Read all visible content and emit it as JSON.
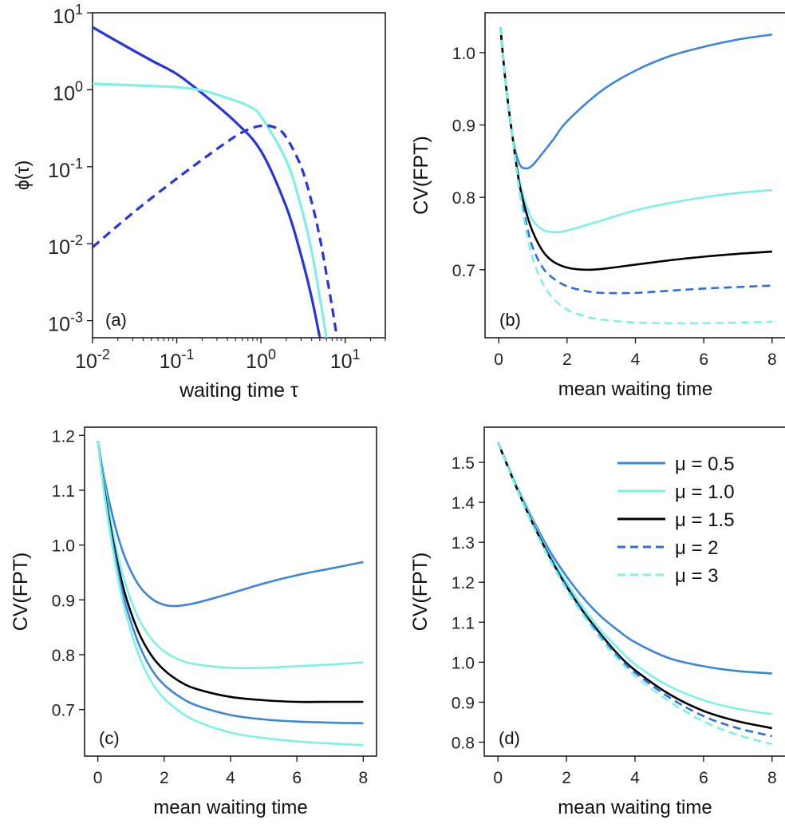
{
  "figure": {
    "title": "",
    "legend_location": "panel (d), top-right",
    "legend": [
      {
        "label": "μ = 0.5",
        "color": "#3a86dd",
        "dash": "solid"
      },
      {
        "label": "μ = 1.0",
        "color": "#7ef1e6",
        "dash": "solid"
      },
      {
        "label": "μ = 1.5",
        "color": "#000000",
        "dash": "solid"
      },
      {
        "label": "μ = 2",
        "color": "#2e6fe0",
        "dash": "dashed"
      },
      {
        "label": "μ = 3",
        "color": "#7ef1e6",
        "dash": "dashed"
      }
    ]
  },
  "chart_data": [
    {
      "id": "a",
      "type": "line",
      "panel_label": "(a)",
      "xlabel": "waiting time τ",
      "ylabel": "ϕ(τ)",
      "xscale": "log",
      "yscale": "log",
      "xlim": [
        0.01,
        30
      ],
      "ylim": [
        0.0006,
        10
      ],
      "xticks": [
        {
          "value": 0.01,
          "base": "10",
          "exp": "-2"
        },
        {
          "value": 0.1,
          "base": "10",
          "exp": "-1"
        },
        {
          "value": 1,
          "base": "10",
          "exp": "0"
        },
        {
          "value": 10,
          "base": "10",
          "exp": "1"
        }
      ],
      "yticks": [
        {
          "value": 0.001,
          "base": "10",
          "exp": "-3"
        },
        {
          "value": 0.01,
          "base": "10",
          "exp": "-2"
        },
        {
          "value": 0.1,
          "base": "10",
          "exp": "-1"
        },
        {
          "value": 1,
          "base": "10",
          "exp": "0"
        },
        {
          "value": 10,
          "base": "10",
          "exp": "1"
        }
      ],
      "series": [
        {
          "name": "dark blue solid",
          "color": "#2536e0",
          "dash": "solid",
          "x": [
            0.01,
            0.02,
            0.05,
            0.1,
            0.2,
            0.5,
            1,
            2,
            3,
            4,
            5
          ],
          "y": [
            6.5,
            4.2,
            2.4,
            1.6,
            0.9,
            0.38,
            0.16,
            0.03,
            0.007,
            0.002,
            0.0006
          ]
        },
        {
          "name": "cyan solid",
          "color": "#7ef1e6",
          "dash": "solid",
          "x": [
            0.01,
            0.05,
            0.1,
            0.2,
            0.4,
            0.7,
            1,
            2,
            3,
            4,
            5,
            6
          ],
          "y": [
            1.2,
            1.12,
            1.08,
            0.98,
            0.78,
            0.62,
            0.45,
            0.12,
            0.03,
            0.008,
            0.002,
            0.0006
          ]
        },
        {
          "name": "blue dashed",
          "color": "#2536e0",
          "dash": "dashed",
          "x": [
            0.01,
            0.03,
            0.1,
            0.3,
            0.6,
            1,
            1.5,
            2,
            3,
            4,
            5,
            6,
            7,
            8
          ],
          "y": [
            0.009,
            0.025,
            0.07,
            0.17,
            0.28,
            0.34,
            0.32,
            0.24,
            0.1,
            0.035,
            0.012,
            0.004,
            0.0015,
            0.0006
          ]
        }
      ]
    },
    {
      "id": "b",
      "type": "line",
      "panel_label": "(b)",
      "xlabel": "mean waiting time",
      "ylabel": "CV(FPT)",
      "xlim": [
        -0.4,
        8.4
      ],
      "ylim": [
        0.606,
        1.055
      ],
      "xticks": [
        0,
        2,
        4,
        6,
        8
      ],
      "yticks": [
        0.7,
        0.8,
        0.9,
        1.0
      ],
      "series": [
        {
          "name": "μ = 0.5",
          "color": "#3a86dd",
          "dash": "solid",
          "x": [
            0.05,
            0.2,
            0.4,
            0.6,
            0.8,
            1.0,
            1.3,
            1.6,
            2,
            3,
            4,
            5,
            6,
            7,
            8
          ],
          "y": [
            1.035,
            0.96,
            0.885,
            0.847,
            0.84,
            0.845,
            0.862,
            0.88,
            0.905,
            0.947,
            0.975,
            0.995,
            1.008,
            1.018,
            1.025
          ]
        },
        {
          "name": "μ = 1.0",
          "color": "#7ef1e6",
          "dash": "solid",
          "x": [
            0.05,
            0.2,
            0.4,
            0.6,
            0.8,
            1.0,
            1.3,
            1.6,
            2,
            3,
            4,
            5,
            6,
            7,
            8
          ],
          "y": [
            1.035,
            0.96,
            0.885,
            0.825,
            0.79,
            0.768,
            0.755,
            0.752,
            0.754,
            0.768,
            0.782,
            0.792,
            0.8,
            0.806,
            0.81
          ]
        },
        {
          "name": "μ = 1.5",
          "color": "#000000",
          "dash": "solid",
          "x": [
            0.05,
            0.2,
            0.4,
            0.6,
            0.8,
            1.0,
            1.3,
            1.6,
            2,
            2.5,
            3,
            4,
            5,
            6,
            7,
            8
          ],
          "y": [
            1.035,
            0.96,
            0.885,
            0.82,
            0.78,
            0.752,
            0.725,
            0.711,
            0.703,
            0.7,
            0.701,
            0.707,
            0.713,
            0.718,
            0.722,
            0.725
          ]
        },
        {
          "name": "μ = 2",
          "color": "#2e6fe0",
          "dash": "dashed",
          "x": [
            0.05,
            0.2,
            0.4,
            0.6,
            0.8,
            1.0,
            1.3,
            1.6,
            2,
            2.5,
            3,
            4,
            5,
            6,
            7,
            8
          ],
          "y": [
            1.035,
            0.96,
            0.885,
            0.815,
            0.765,
            0.73,
            0.702,
            0.688,
            0.677,
            0.671,
            0.668,
            0.668,
            0.671,
            0.674,
            0.676,
            0.678
          ]
        },
        {
          "name": "μ = 3",
          "color": "#7ef1e6",
          "dash": "dashed",
          "x": [
            0.05,
            0.2,
            0.4,
            0.6,
            0.8,
            1.0,
            1.3,
            1.6,
            2,
            2.5,
            3,
            4,
            5,
            6,
            7,
            8
          ],
          "y": [
            1.035,
            0.96,
            0.885,
            0.81,
            0.755,
            0.715,
            0.68,
            0.66,
            0.645,
            0.636,
            0.631,
            0.627,
            0.626,
            0.626,
            0.627,
            0.628
          ]
        }
      ]
    },
    {
      "id": "c",
      "type": "line",
      "panel_label": "(c)",
      "xlabel": "mean waiting time",
      "ylabel": "CV(FPT)",
      "xlim": [
        -0.4,
        8.4
      ],
      "ylim": [
        0.615,
        1.215
      ],
      "xticks": [
        0,
        2,
        4,
        6,
        8
      ],
      "yticks": [
        0.7,
        0.8,
        0.9,
        1.0,
        1.1,
        1.2
      ],
      "series": [
        {
          "name": "μ = 0.5",
          "color": "#3a86dd",
          "dash": "solid",
          "x": [
            0.0,
            0.2,
            0.5,
            0.8,
            1.2,
            1.6,
            2.0,
            2.4,
            3,
            4,
            5,
            6,
            7,
            8
          ],
          "y": [
            1.19,
            1.12,
            1.04,
            0.98,
            0.93,
            0.903,
            0.891,
            0.889,
            0.895,
            0.912,
            0.93,
            0.945,
            0.957,
            0.969
          ]
        },
        {
          "name": "μ = 1.0",
          "color": "#7ef1e6",
          "dash": "solid",
          "x": [
            0.0,
            0.2,
            0.5,
            0.8,
            1.2,
            1.6,
            2.0,
            2.5,
            3,
            4,
            5,
            6,
            7,
            8
          ],
          "y": [
            1.19,
            1.11,
            1.01,
            0.935,
            0.87,
            0.83,
            0.806,
            0.79,
            0.782,
            0.776,
            0.776,
            0.779,
            0.782,
            0.786
          ]
        },
        {
          "name": "μ = 1.5",
          "color": "#000000",
          "dash": "solid",
          "x": [
            0.0,
            0.2,
            0.5,
            0.8,
            1.2,
            1.6,
            2.0,
            2.5,
            3,
            4,
            5,
            6,
            7,
            8
          ],
          "y": [
            1.19,
            1.1,
            0.995,
            0.915,
            0.845,
            0.8,
            0.772,
            0.75,
            0.737,
            0.723,
            0.717,
            0.714,
            0.714,
            0.714
          ]
        },
        {
          "name": "μ = 2",
          "color": "#3a86dd",
          "dash": "solid",
          "x": [
            0.0,
            0.2,
            0.5,
            0.8,
            1.2,
            1.6,
            2.0,
            2.5,
            3,
            4,
            5,
            6,
            7,
            8
          ],
          "y": [
            1.19,
            1.095,
            0.985,
            0.9,
            0.825,
            0.775,
            0.745,
            0.722,
            0.707,
            0.69,
            0.682,
            0.678,
            0.676,
            0.675
          ]
        },
        {
          "name": "μ = 3",
          "color": "#7ef1e6",
          "dash": "solid",
          "x": [
            0.0,
            0.2,
            0.5,
            0.8,
            1.2,
            1.6,
            2.0,
            2.5,
            3,
            4,
            5,
            6,
            7,
            8
          ],
          "y": [
            1.19,
            1.09,
            0.975,
            0.885,
            0.805,
            0.752,
            0.72,
            0.695,
            0.678,
            0.658,
            0.648,
            0.642,
            0.638,
            0.635
          ]
        }
      ]
    },
    {
      "id": "d",
      "type": "line",
      "panel_label": "(d)",
      "xlabel": "mean waiting time",
      "ylabel": "CV(FPT)",
      "xlim": [
        -0.4,
        8.4
      ],
      "ylim": [
        0.765,
        1.588
      ],
      "xticks": [
        0,
        2,
        4,
        6,
        8
      ],
      "yticks": [
        0.8,
        0.9,
        1.0,
        1.1,
        1.2,
        1.3,
        1.4,
        1.5
      ],
      "series": [
        {
          "name": "μ = 0.5",
          "color": "#3a86dd",
          "dash": "solid",
          "x": [
            0,
            0.5,
            1,
            1.5,
            2,
            2.5,
            3,
            3.5,
            4,
            5,
            6,
            7,
            8
          ],
          "y": [
            1.55,
            1.45,
            1.36,
            1.28,
            1.215,
            1.16,
            1.115,
            1.08,
            1.05,
            1.01,
            0.99,
            0.978,
            0.972
          ]
        },
        {
          "name": "μ = 1.0",
          "color": "#7ef1e6",
          "dash": "solid",
          "x": [
            0,
            0.5,
            1,
            1.5,
            2,
            2.5,
            3,
            3.5,
            4,
            5,
            6,
            7,
            8
          ],
          "y": [
            1.55,
            1.45,
            1.355,
            1.27,
            1.2,
            1.135,
            1.08,
            1.035,
            0.995,
            0.94,
            0.905,
            0.883,
            0.87
          ]
        },
        {
          "name": "μ = 1.5",
          "color": "#000000",
          "dash": "solid",
          "x": [
            0,
            0.5,
            1,
            1.5,
            2,
            2.5,
            3,
            3.5,
            4,
            5,
            6,
            7,
            8
          ],
          "y": [
            1.55,
            1.445,
            1.35,
            1.265,
            1.19,
            1.125,
            1.07,
            1.02,
            0.98,
            0.92,
            0.878,
            0.852,
            0.835
          ]
        },
        {
          "name": "μ = 2",
          "color": "#2e6fe0",
          "dash": "dashed",
          "x": [
            0,
            0.5,
            1,
            1.5,
            2,
            2.5,
            3,
            3.5,
            4,
            5,
            6,
            7,
            8
          ],
          "y": [
            1.55,
            1.445,
            1.348,
            1.262,
            1.187,
            1.121,
            1.065,
            1.015,
            0.974,
            0.912,
            0.865,
            0.835,
            0.815
          ]
        },
        {
          "name": "μ = 3",
          "color": "#7ef1e6",
          "dash": "dashed",
          "x": [
            0,
            0.5,
            1,
            1.5,
            2,
            2.5,
            3,
            3.5,
            4,
            5,
            6,
            7,
            8
          ],
          "y": [
            1.55,
            1.443,
            1.345,
            1.258,
            1.182,
            1.116,
            1.058,
            1.008,
            0.966,
            0.902,
            0.852,
            0.818,
            0.795
          ]
        }
      ]
    }
  ]
}
